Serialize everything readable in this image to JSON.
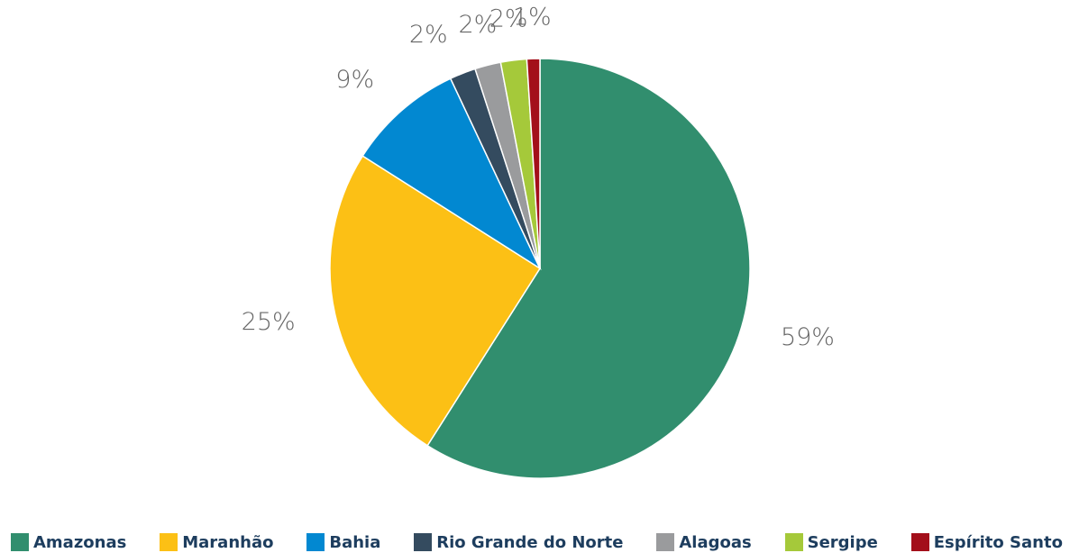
{
  "chart_data": {
    "type": "pie",
    "categories": [
      "Amazonas",
      "Maranhão",
      "Bahia",
      "Rio Grande do Norte",
      "Alagoas",
      "Sergipe",
      "Espírito Santo"
    ],
    "values": [
      59,
      25,
      9,
      2,
      2,
      2,
      1
    ],
    "value_labels": [
      "59%",
      "25%",
      "9%",
      "2%",
      "2%",
      "2%",
      "1%"
    ],
    "colors": [
      "#318e6e",
      "#fcc015",
      "#0288d1",
      "#344b5f",
      "#9a9b9d",
      "#a5c93a",
      "#a30f1a"
    ],
    "legend": "bottom"
  }
}
